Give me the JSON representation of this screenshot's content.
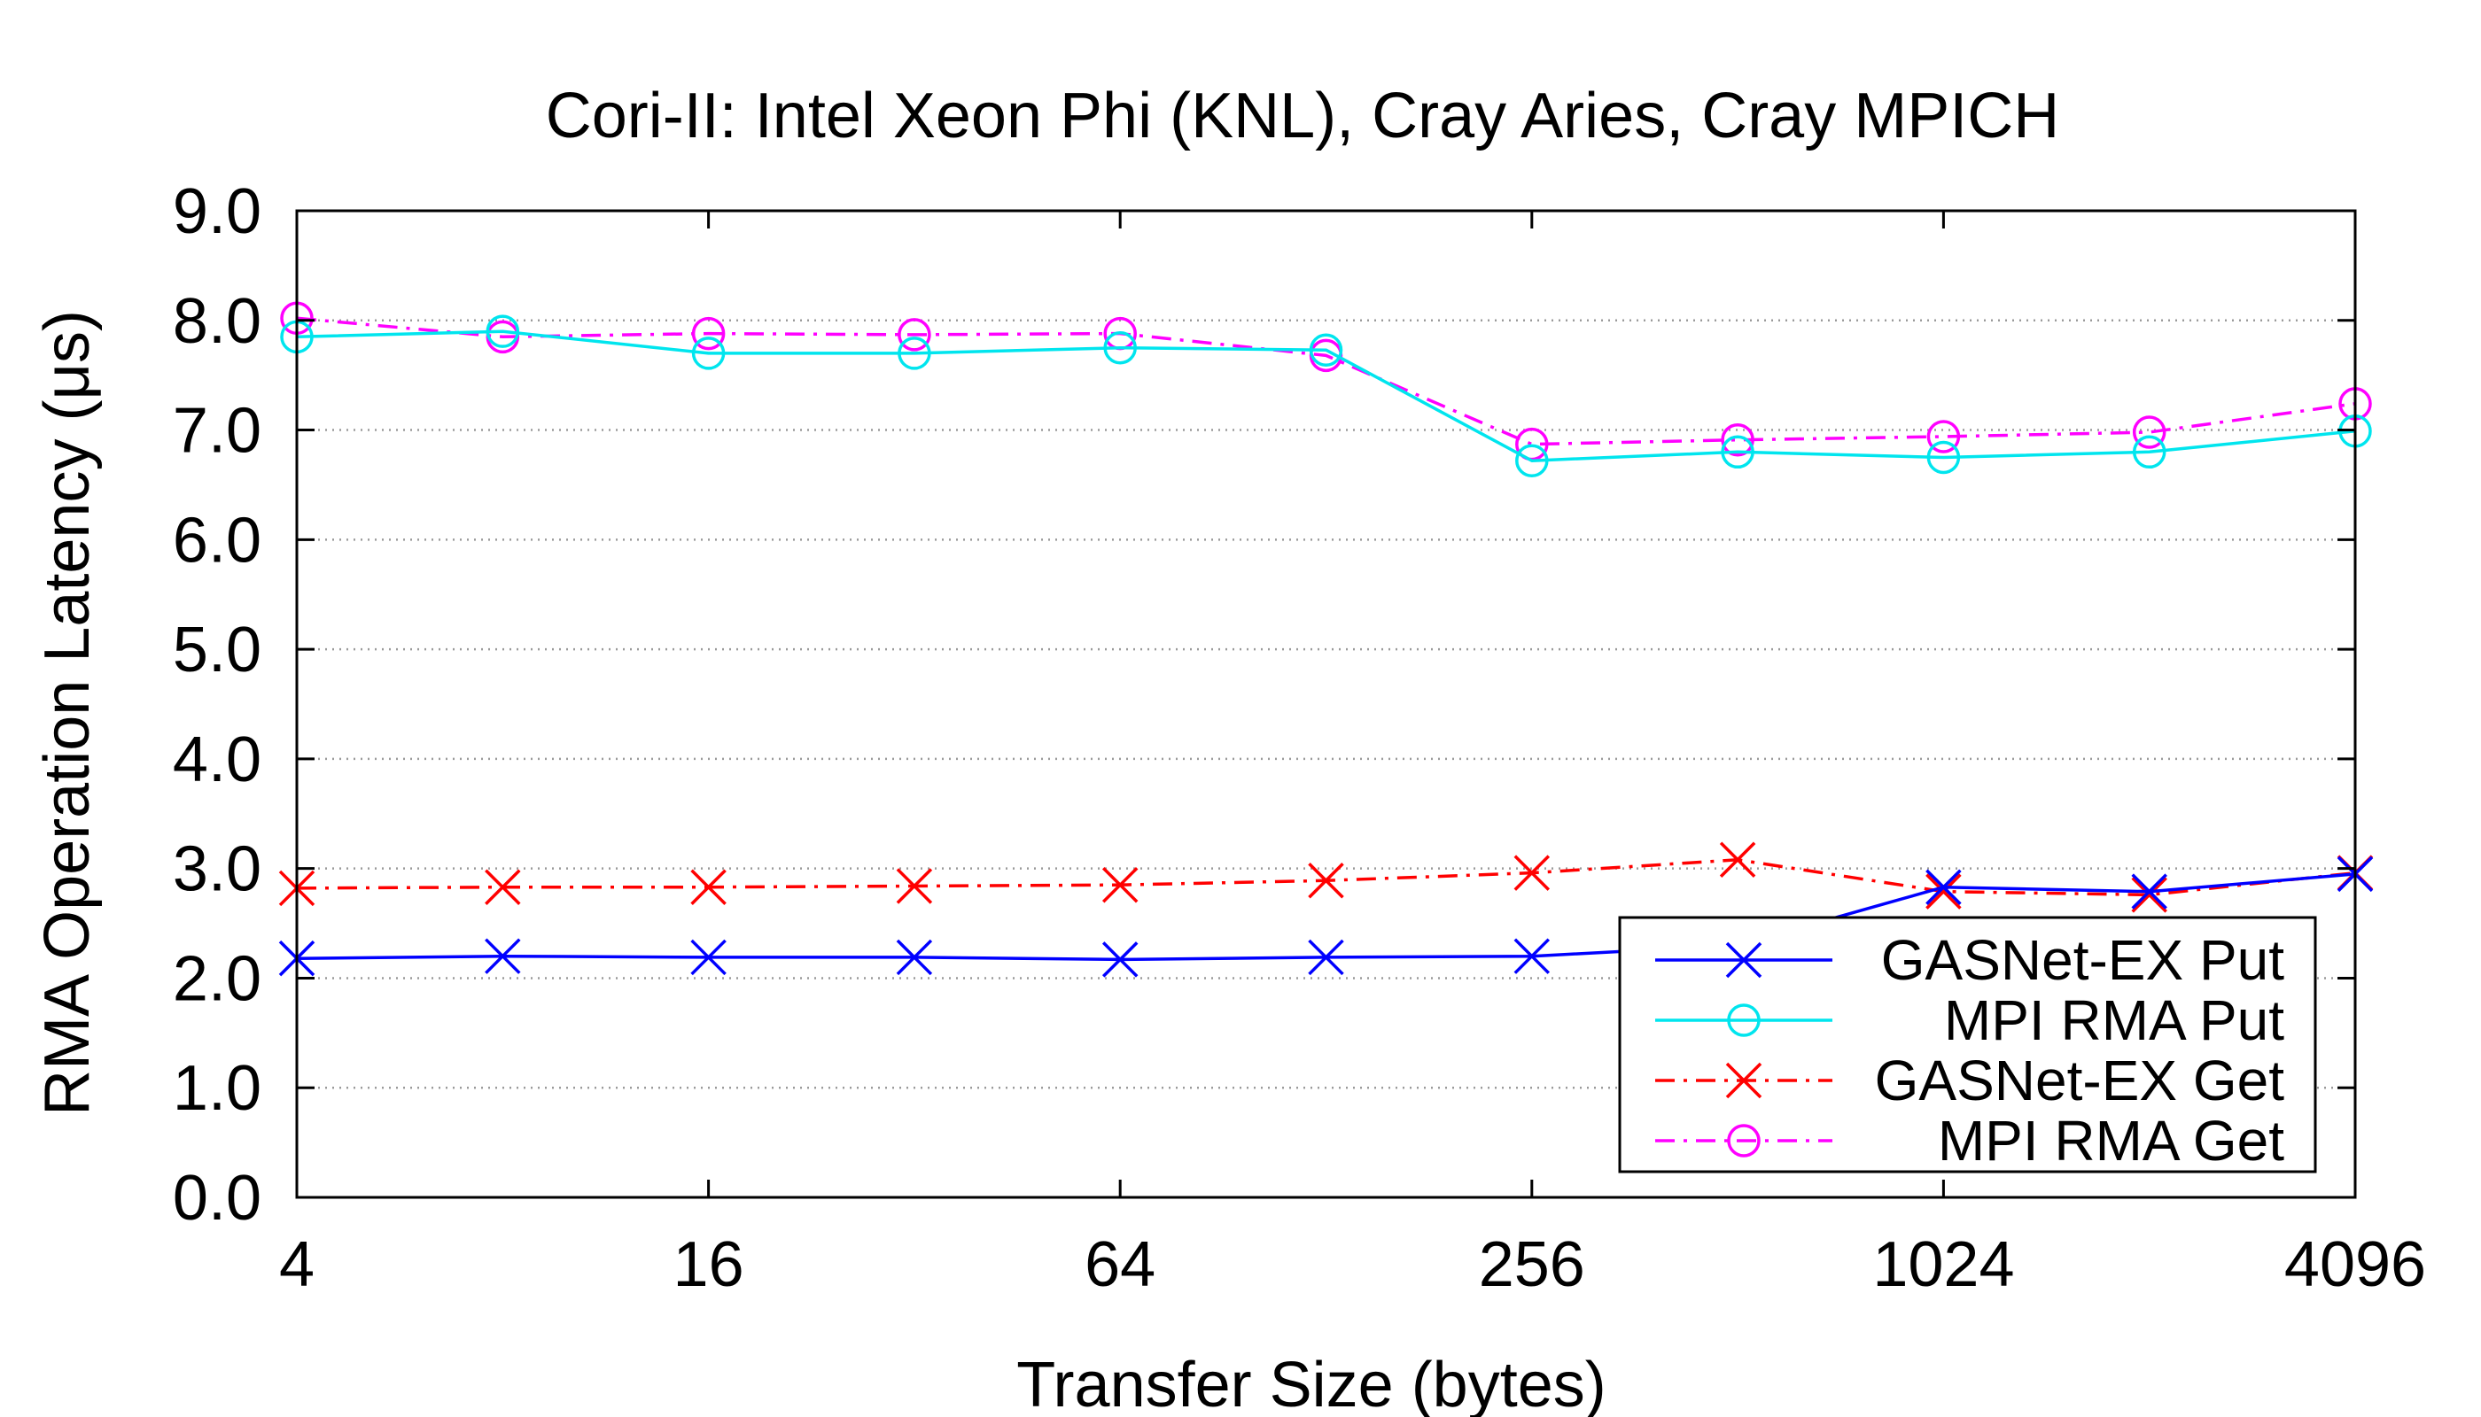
{
  "chart_data": {
    "type": "line",
    "title": "Cori-II: Intel Xeon Phi (KNL), Cray Aries, Cray MPICH",
    "xlabel": "Transfer Size (bytes)",
    "ylabel": "RMA Operation Latency (μs)",
    "x_scale": "log2",
    "x": [
      4,
      8,
      16,
      32,
      64,
      128,
      256,
      512,
      1024,
      2048,
      4096
    ],
    "x_tick_values": [
      4,
      16,
      64,
      256,
      1024,
      4096
    ],
    "x_tick_labels": [
      "4",
      "16",
      "64",
      "256",
      "1024",
      "4096"
    ],
    "xlim": [
      4,
      4096
    ],
    "ylim": [
      0,
      9
    ],
    "y_tick_values": [
      0,
      1,
      2,
      3,
      4,
      5,
      6,
      7,
      8,
      9
    ],
    "y_tick_labels": [
      "0.0",
      "1.0",
      "2.0",
      "3.0",
      "4.0",
      "5.0",
      "6.0",
      "7.0",
      "8.0",
      "9.0"
    ],
    "grid": "horizontal dotted",
    "legend_position": "bottom-right",
    "series": [
      {
        "name": "GASNet-EX Put",
        "color": "#0000ff",
        "line_style": "solid",
        "marker": "x",
        "values": [
          2.18,
          2.2,
          2.19,
          2.19,
          2.17,
          2.19,
          2.2,
          2.3,
          2.83,
          2.79,
          2.95
        ]
      },
      {
        "name": "MPI RMA Put",
        "color": "#00e5ee",
        "line_style": "solid",
        "marker": "circle",
        "values": [
          7.85,
          7.9,
          7.7,
          7.7,
          7.75,
          7.73,
          6.72,
          6.8,
          6.75,
          6.8,
          6.99
        ]
      },
      {
        "name": "GASNet-EX Get",
        "color": "#ff0000",
        "line_style": "dash-dot",
        "marker": "x",
        "values": [
          2.82,
          2.83,
          2.83,
          2.84,
          2.85,
          2.89,
          2.96,
          3.08,
          2.79,
          2.76,
          2.96
        ]
      },
      {
        "name": "MPI RMA Get",
        "color": "#ff00ff",
        "line_style": "dash-dot",
        "marker": "circle",
        "values": [
          8.02,
          7.85,
          7.88,
          7.87,
          7.88,
          7.68,
          6.87,
          6.91,
          6.94,
          6.98,
          7.24
        ]
      }
    ]
  }
}
